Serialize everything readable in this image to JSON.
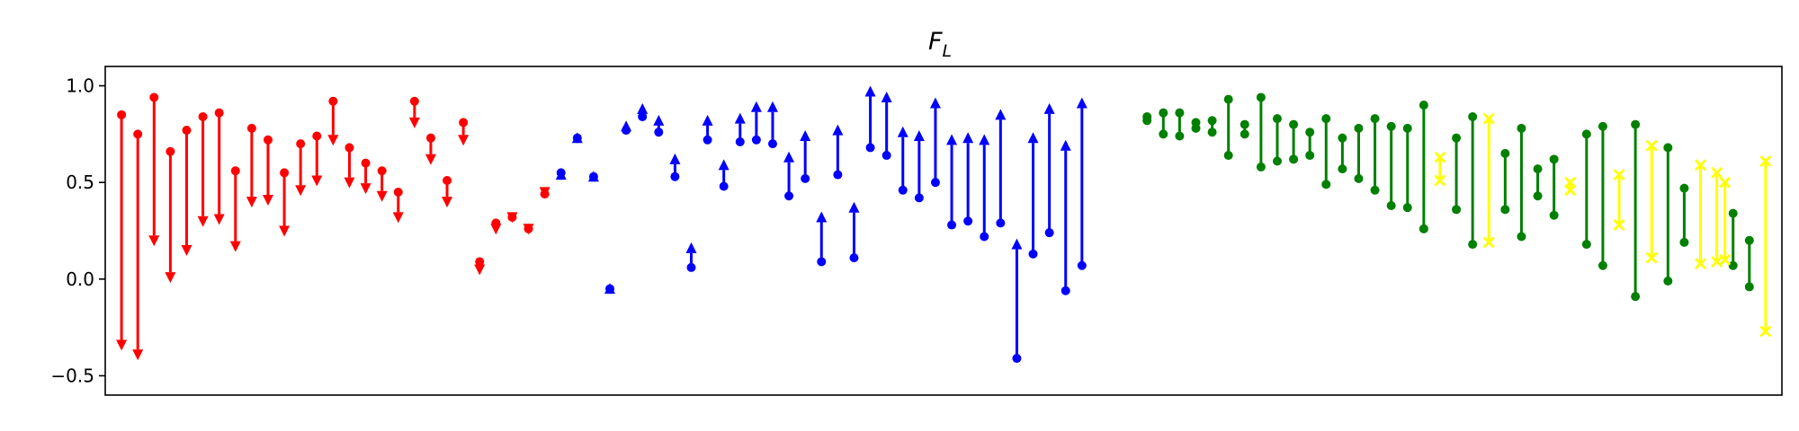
{
  "chart_data": {
    "type": "errorbar-arrows",
    "title": "F",
    "title_subscript": "L",
    "xlabel": "",
    "ylabel": "",
    "ylim": [
      -0.6,
      1.1
    ],
    "yticks": [
      -0.5,
      0.0,
      0.5,
      1.0
    ],
    "ytick_labels": [
      "−0.5",
      "0.0",
      "0.5",
      "1.0"
    ],
    "x_axis_ticks_visible": false,
    "grid": false,
    "colors": {
      "red": "#ff0000",
      "blue": "#0000ff",
      "green": "#008000",
      "yellow": "#ffff00"
    },
    "series": [
      {
        "color": "red",
        "marker": "arrow-down",
        "segments": [
          {
            "x": 1,
            "start": 0.85,
            "end": -0.37
          },
          {
            "x": 2,
            "start": 0.75,
            "end": -0.42
          },
          {
            "x": 3,
            "start": 0.94,
            "end": 0.17
          },
          {
            "x": 4,
            "start": 0.66,
            "end": -0.02
          },
          {
            "x": 5,
            "start": 0.77,
            "end": 0.12
          },
          {
            "x": 6,
            "start": 0.84,
            "end": 0.27
          },
          {
            "x": 7,
            "start": 0.86,
            "end": 0.28
          },
          {
            "x": 8,
            "start": 0.56,
            "end": 0.14
          },
          {
            "x": 9,
            "start": 0.78,
            "end": 0.37
          },
          {
            "x": 10,
            "start": 0.72,
            "end": 0.38
          },
          {
            "x": 11,
            "start": 0.55,
            "end": 0.22
          },
          {
            "x": 12,
            "start": 0.7,
            "end": 0.43
          },
          {
            "x": 13,
            "start": 0.74,
            "end": 0.48
          },
          {
            "x": 14,
            "start": 0.92,
            "end": 0.69
          },
          {
            "x": 15,
            "start": 0.68,
            "end": 0.47
          },
          {
            "x": 16,
            "start": 0.6,
            "end": 0.44
          },
          {
            "x": 17,
            "start": 0.56,
            "end": 0.4
          },
          {
            "x": 18,
            "start": 0.45,
            "end": 0.29
          },
          {
            "x": 19,
            "start": 0.92,
            "end": 0.78
          },
          {
            "x": 20,
            "start": 0.73,
            "end": 0.59
          },
          {
            "x": 21,
            "start": 0.51,
            "end": 0.37
          },
          {
            "x": 22,
            "start": 0.81,
            "end": 0.69
          },
          {
            "x": 23,
            "start": 0.09,
            "end": 0.02
          },
          {
            "x": 24,
            "start": 0.29,
            "end": 0.23
          },
          {
            "x": 25,
            "start": 0.32,
            "end": 0.29
          },
          {
            "x": 26,
            "start": 0.26,
            "end": 0.23
          },
          {
            "x": 27,
            "start": 0.44,
            "end": 0.42
          }
        ]
      },
      {
        "color": "blue",
        "marker": "arrow-up",
        "segments": [
          {
            "x": 28,
            "start": 0.55,
            "end": 0.57
          },
          {
            "x": 29,
            "start": 0.73,
            "end": 0.76
          },
          {
            "x": 30,
            "start": 0.53,
            "end": 0.56
          },
          {
            "x": 31,
            "start": -0.05,
            "end": -0.02
          },
          {
            "x": 32,
            "start": 0.77,
            "end": 0.82
          },
          {
            "x": 33,
            "start": 0.84,
            "end": 0.91
          },
          {
            "x": 34,
            "start": 0.76,
            "end": 0.85
          },
          {
            "x": 35,
            "start": 0.53,
            "end": 0.65
          },
          {
            "x": 36,
            "start": 0.06,
            "end": 0.19
          },
          {
            "x": 37,
            "start": 0.72,
            "end": 0.85
          },
          {
            "x": 38,
            "start": 0.48,
            "end": 0.62
          },
          {
            "x": 39,
            "start": 0.71,
            "end": 0.86
          },
          {
            "x": 40,
            "start": 0.72,
            "end": 0.92
          },
          {
            "x": 41,
            "start": 0.7,
            "end": 0.92
          },
          {
            "x": 42,
            "start": 0.43,
            "end": 0.66
          },
          {
            "x": 43,
            "start": 0.52,
            "end": 0.77
          },
          {
            "x": 44,
            "start": 0.09,
            "end": 0.35
          },
          {
            "x": 45,
            "start": 0.54,
            "end": 0.8
          },
          {
            "x": 46,
            "start": 0.11,
            "end": 0.4
          },
          {
            "x": 47,
            "start": 0.68,
            "end": 1.0
          },
          {
            "x": 48,
            "start": 0.64,
            "end": 0.97
          },
          {
            "x": 49,
            "start": 0.46,
            "end": 0.79
          },
          {
            "x": 50,
            "start": 0.42,
            "end": 0.77
          },
          {
            "x": 51,
            "start": 0.5,
            "end": 0.94
          },
          {
            "x": 52,
            "start": 0.28,
            "end": 0.75
          },
          {
            "x": 53,
            "start": 0.3,
            "end": 0.76
          },
          {
            "x": 54,
            "start": 0.22,
            "end": 0.75
          },
          {
            "x": 55,
            "start": 0.29,
            "end": 0.88
          },
          {
            "x": 56,
            "start": -0.41,
            "end": 0.21
          },
          {
            "x": 57,
            "start": 0.13,
            "end": 0.76
          },
          {
            "x": 58,
            "start": 0.24,
            "end": 0.91
          },
          {
            "x": 59,
            "start": -0.06,
            "end": 0.72
          },
          {
            "x": 60,
            "start": 0.07,
            "end": 0.94
          }
        ]
      },
      {
        "color": "green",
        "marker": "dot",
        "segments": [
          {
            "x": 64,
            "start": 0.82,
            "end": 0.84
          },
          {
            "x": 65,
            "start": 0.75,
            "end": 0.86
          },
          {
            "x": 66,
            "start": 0.74,
            "end": 0.86
          },
          {
            "x": 67,
            "start": 0.78,
            "end": 0.81
          },
          {
            "x": 68,
            "start": 0.76,
            "end": 0.82
          },
          {
            "x": 69,
            "start": 0.64,
            "end": 0.93
          },
          {
            "x": 70,
            "start": 0.75,
            "end": 0.8
          },
          {
            "x": 71,
            "start": 0.58,
            "end": 0.94
          },
          {
            "x": 72,
            "start": 0.61,
            "end": 0.83
          },
          {
            "x": 73,
            "start": 0.62,
            "end": 0.8
          },
          {
            "x": 74,
            "start": 0.64,
            "end": 0.76
          },
          {
            "x": 75,
            "start": 0.49,
            "end": 0.83
          },
          {
            "x": 76,
            "start": 0.57,
            "end": 0.73
          },
          {
            "x": 77,
            "start": 0.52,
            "end": 0.78
          },
          {
            "x": 78,
            "start": 0.46,
            "end": 0.83
          },
          {
            "x": 79,
            "start": 0.38,
            "end": 0.79
          },
          {
            "x": 80,
            "start": 0.37,
            "end": 0.78
          },
          {
            "x": 81,
            "start": 0.26,
            "end": 0.9
          },
          {
            "x": 83,
            "start": 0.36,
            "end": 0.73
          },
          {
            "x": 84,
            "start": 0.18,
            "end": 0.84
          },
          {
            "x": 86,
            "start": 0.36,
            "end": 0.65
          },
          {
            "x": 87,
            "start": 0.22,
            "end": 0.78
          },
          {
            "x": 88,
            "start": 0.43,
            "end": 0.57
          },
          {
            "x": 89,
            "start": 0.33,
            "end": 0.62
          },
          {
            "x": 91,
            "start": 0.18,
            "end": 0.75
          },
          {
            "x": 92,
            "start": 0.07,
            "end": 0.79
          },
          {
            "x": 94,
            "start": -0.09,
            "end": 0.8
          },
          {
            "x": 96,
            "start": -0.01,
            "end": 0.68
          },
          {
            "x": 97,
            "start": 0.19,
            "end": 0.47
          },
          {
            "x": 100,
            "start": 0.07,
            "end": 0.34
          },
          {
            "x": 101,
            "start": -0.04,
            "end": 0.2
          }
        ]
      },
      {
        "color": "yellow",
        "marker": "x",
        "segments": [
          {
            "x": 82,
            "start": 0.51,
            "end": 0.63
          },
          {
            "x": 85,
            "start": 0.19,
            "end": 0.83
          },
          {
            "x": 90,
            "start": 0.46,
            "end": 0.5
          },
          {
            "x": 93,
            "start": 0.28,
            "end": 0.54
          },
          {
            "x": 95,
            "start": 0.11,
            "end": 0.69
          },
          {
            "x": 98,
            "start": 0.08,
            "end": 0.59
          },
          {
            "x": 99,
            "start": 0.09,
            "end": 0.55
          },
          {
            "x": 99.5,
            "start": 0.1,
            "end": 0.5
          },
          {
            "x": 102,
            "start": -0.27,
            "end": 0.61
          }
        ]
      }
    ]
  }
}
